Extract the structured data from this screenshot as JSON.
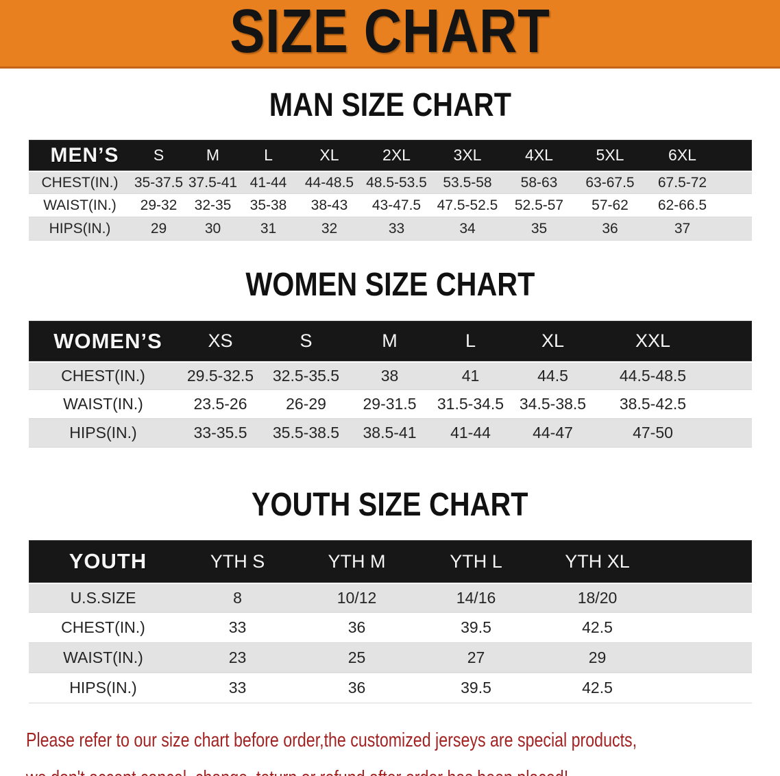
{
  "banner": {
    "title": "SIZE CHART"
  },
  "theme": {
    "banner_bg": "#e8801f",
    "table_header_bg": "#171717",
    "row_alt_bg": "#e3e3e3",
    "disclaimer_color": "#a32222"
  },
  "sections": [
    {
      "heading": "MAN SIZE CHART",
      "table": {
        "header_label": "MEN’S",
        "columns": [
          "S",
          "M",
          "L",
          "XL",
          "2XL",
          "3XL",
          "4XL",
          "5XL",
          "6XL"
        ],
        "rows": [
          {
            "label": "CHEST(IN.)",
            "values": [
              "35-37.5",
              "37.5-41",
              "41-44",
              "44-48.5",
              "48.5-53.5",
              "53.5-58",
              "58-63",
              "63-67.5",
              "67.5-72"
            ]
          },
          {
            "label": "WAIST(IN.)",
            "values": [
              "29-32",
              "32-35",
              "35-38",
              "38-43",
              "43-47.5",
              "47.5-52.5",
              "52.5-57",
              "57-62",
              "62-66.5"
            ]
          },
          {
            "label": "HIPS(IN.)",
            "values": [
              "29",
              "30",
              "31",
              "32",
              "33",
              "34",
              "35",
              "36",
              "37"
            ]
          }
        ]
      }
    },
    {
      "heading": "WOMEN SIZE CHART",
      "table": {
        "header_label": "WOMEN’S",
        "columns": [
          "XS",
          "S",
          "M",
          "L",
          "XL",
          "XXL"
        ],
        "rows": [
          {
            "label": "CHEST(IN.)",
            "values": [
              "29.5-32.5",
              "32.5-35.5",
              "38",
              "41",
              "44.5",
              "44.5-48.5"
            ]
          },
          {
            "label": "WAIST(IN.)",
            "values": [
              "23.5-26",
              "26-29",
              "29-31.5",
              "31.5-34.5",
              "34.5-38.5",
              "38.5-42.5"
            ]
          },
          {
            "label": "HIPS(IN.)",
            "values": [
              "33-35.5",
              "35.5-38.5",
              "38.5-41",
              "41-44",
              "44-47",
              "47-50"
            ]
          }
        ]
      }
    },
    {
      "heading": "YOUTH SIZE CHART",
      "table": {
        "header_label": "YOUTH",
        "columns": [
          "YTH S",
          "YTH M",
          "YTH L",
          "YTH XL"
        ],
        "rows": [
          {
            "label": "U.S.SIZE",
            "values": [
              "8",
              "10/12",
              "14/16",
              "18/20"
            ]
          },
          {
            "label": "CHEST(IN.)",
            "values": [
              "33",
              "36",
              "39.5",
              "42.5"
            ]
          },
          {
            "label": "WAIST(IN.)",
            "values": [
              "23",
              "25",
              "27",
              "29"
            ]
          },
          {
            "label": "HIPS(IN.)",
            "values": [
              "33",
              "36",
              "39.5",
              "42.5"
            ]
          }
        ]
      }
    }
  ],
  "disclaimer": {
    "line1": "Please refer to our size chart before order,the customized jerseys are special products,",
    "line2": "we don't accept cancel, change, teturn or refund after order has been placed!"
  }
}
